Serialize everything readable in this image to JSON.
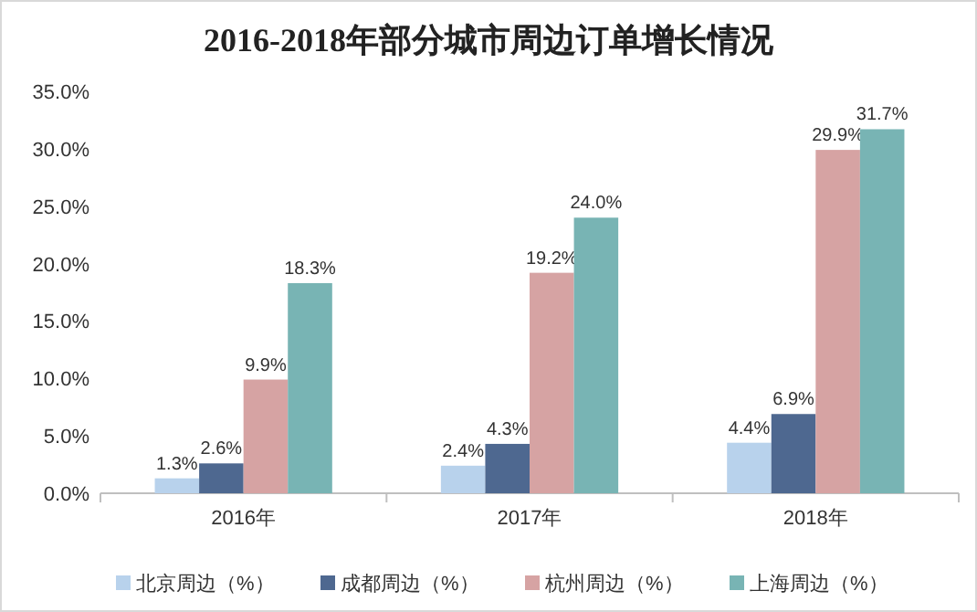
{
  "chart_data": {
    "type": "bar",
    "title": "2016-2018年部分城市周边订单增长情况",
    "categories": [
      "2016年",
      "2017年",
      "2018年"
    ],
    "series": [
      {
        "name": "北京周边（%）",
        "color": "#b8d2ec",
        "values": [
          1.3,
          2.4,
          4.4
        ],
        "value_labels": [
          "1.3%",
          "2.4%",
          "4.4%"
        ]
      },
      {
        "name": "成都周边（%）",
        "color": "#4e6890",
        "values": [
          2.6,
          4.3,
          6.9
        ],
        "value_labels": [
          "2.6%",
          "4.3%",
          "6.9%"
        ]
      },
      {
        "name": "杭州周边（%）",
        "color": "#d6a3a3",
        "values": [
          9.9,
          19.2,
          29.9
        ],
        "value_labels": [
          "9.9%",
          "19.2%",
          "29.9%"
        ]
      },
      {
        "name": "上海周边（%）",
        "color": "#78b4b4",
        "values": [
          18.3,
          24.0,
          31.7
        ],
        "value_labels": [
          "18.3%",
          "24.0%",
          "31.7%"
        ]
      }
    ],
    "ylim": [
      0,
      35
    ],
    "yticks": [
      {
        "value": 0,
        "label": "0.0%"
      },
      {
        "value": 5,
        "label": "5.0%"
      },
      {
        "value": 10,
        "label": "10.0%"
      },
      {
        "value": 15,
        "label": "15.0%"
      },
      {
        "value": 20,
        "label": "20.0%"
      },
      {
        "value": 25,
        "label": "25.0%"
      },
      {
        "value": 30,
        "label": "30.0%"
      },
      {
        "value": 35,
        "label": "35.0%"
      }
    ],
    "legend": "bottom"
  }
}
